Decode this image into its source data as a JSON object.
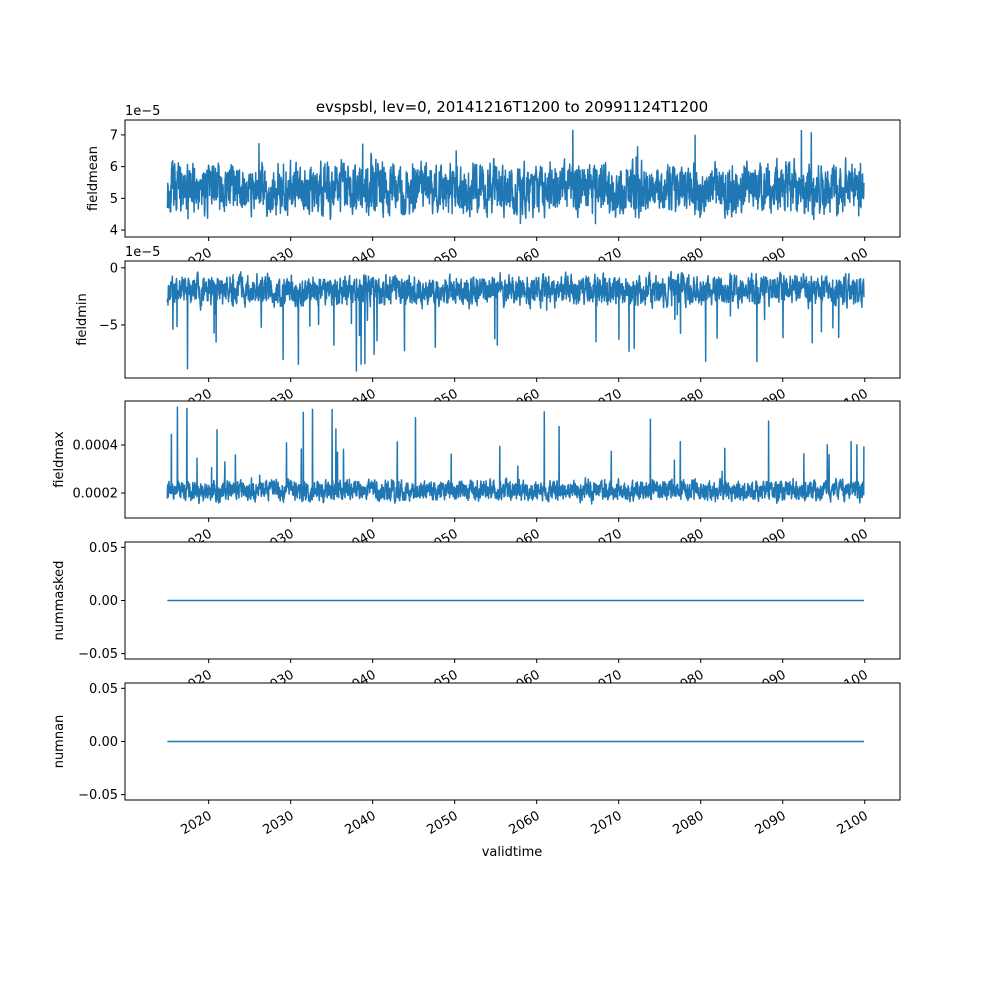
{
  "chart_data": {
    "type": "line",
    "title": "evspsbl, lev=0, 20141216T1200 to 20991124T1200",
    "xlabel": "validtime",
    "xlim": [
      2009.8,
      2104.3
    ],
    "x_start": 2014.96,
    "x_end": 2099.9,
    "xticks": [
      2020,
      2030,
      2040,
      2050,
      2060,
      2070,
      2080,
      2090,
      2100
    ],
    "xtick_labels": [
      "2020",
      "2030",
      "2040",
      "2050",
      "2060",
      "2070",
      "2080",
      "2090",
      "2100"
    ],
    "color": "#1f77b4",
    "panels": [
      {
        "ylabel": "fieldmean",
        "offset_text": "1e−5",
        "ylim": [
          3.78,
          7.47
        ],
        "yticks": [
          4,
          5,
          6,
          7
        ],
        "ytick_labels": [
          "4",
          "5",
          "6",
          "7"
        ],
        "series": {
          "name": "fieldmean",
          "mean": 5.3,
          "amplitude": 0.55,
          "min": 3.9,
          "max": 7.35,
          "seed": 11
        }
      },
      {
        "ylabel": "fieldmin",
        "offset_text": "1e−5",
        "ylim": [
          -9.65,
          0.6
        ],
        "yticks": [
          -5,
          0
        ],
        "ytick_labels": [
          "−5",
          "0"
        ],
        "series": {
          "name": "fieldmin",
          "mean": -2.0,
          "amplitude": 0.9,
          "min": -9.2,
          "max": 0.0,
          "seed": 23,
          "skew": "down"
        }
      },
      {
        "ylabel": "fieldmax",
        "offset_text": "",
        "ylim": [
          9.6e-05,
          0.000583
        ],
        "yticks": [
          0.0002,
          0.0004
        ],
        "ytick_labels": [
          "0.0002",
          "0.0004"
        ],
        "series": {
          "name": "fieldmax",
          "mean": 0.00021,
          "amplitude": 3e-05,
          "min": 0.00013,
          "max": 0.00056,
          "seed": 37,
          "skew": "up"
        }
      },
      {
        "ylabel": "nummasked",
        "offset_text": "",
        "ylim": [
          -0.055,
          0.055
        ],
        "yticks": [
          -0.05,
          0.0,
          0.05
        ],
        "ytick_labels": [
          "−0.05",
          "0.00",
          "0.05"
        ],
        "series": {
          "name": "nummasked",
          "constant": 0
        }
      },
      {
        "ylabel": "numnan",
        "offset_text": "",
        "ylim": [
          -0.055,
          0.055
        ],
        "yticks": [
          -0.05,
          0.0,
          0.05
        ],
        "ytick_labels": [
          "−0.05",
          "0.00",
          "0.05"
        ],
        "series": {
          "name": "numnan",
          "constant": 0
        }
      }
    ]
  }
}
